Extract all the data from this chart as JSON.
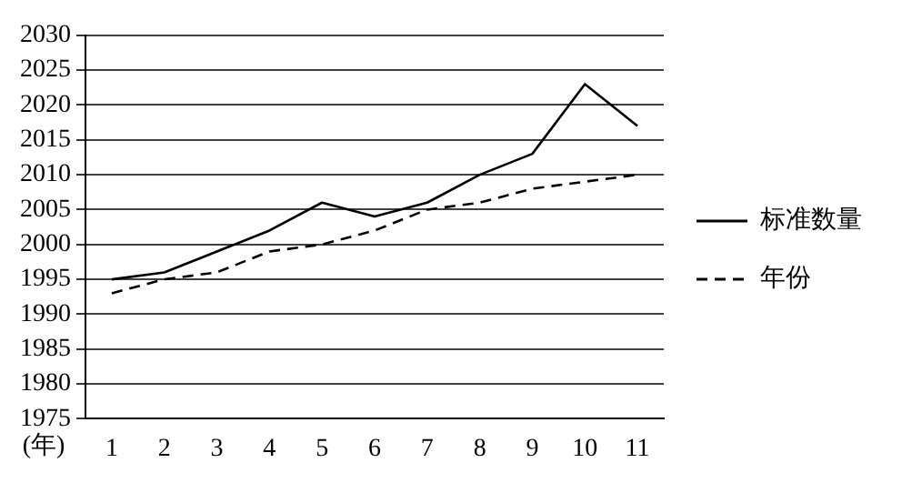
{
  "chart_data": {
    "type": "line",
    "xlabel": "(年)",
    "categories": [
      "1",
      "2",
      "3",
      "4",
      "5",
      "6",
      "7",
      "8",
      "9",
      "10",
      "11"
    ],
    "series": [
      {
        "name": "标准数量",
        "color": "#000000",
        "line_style": "solid",
        "values": [
          1995,
          1996,
          1999,
          2002,
          2006,
          2004,
          2006,
          2010,
          2013,
          2023,
          2017
        ]
      },
      {
        "name": "年份",
        "color": "#000000",
        "line_style": "dashed",
        "values": [
          1993,
          1995,
          1996,
          1999,
          2000,
          2002,
          2005,
          2006,
          2008,
          2009,
          2010
        ]
      }
    ],
    "ylim": [
      1975,
      2030
    ],
    "yticks": [
      1975,
      1980,
      1985,
      1990,
      1995,
      2000,
      2005,
      2010,
      2015,
      2020,
      2025,
      2030
    ],
    "grid": "y",
    "legend": "right",
    "marker": "none"
  }
}
